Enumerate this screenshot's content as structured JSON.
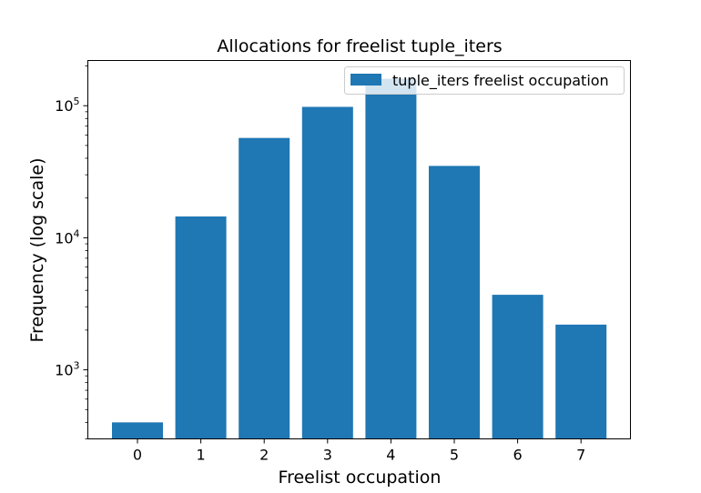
{
  "chart_data": {
    "type": "bar",
    "title": "Allocations for freelist tuple_iters",
    "xlabel": "Freelist occupation",
    "ylabel": "Frequency (log scale)",
    "yscale": "log",
    "ylim": [
      300,
      220000
    ],
    "categories": [
      "0",
      "1",
      "2",
      "3",
      "4",
      "5",
      "6",
      "7"
    ],
    "series": [
      {
        "name": "tuple_iters freelist occupation",
        "values": [
          400,
          14500,
          57000,
          98000,
          160000,
          35000,
          3700,
          2200
        ]
      }
    ],
    "bar_color": "#1f77b4",
    "legend": "top-right",
    "y_major_ticks": [
      {
        "value": 1000,
        "mantissa": "10",
        "exponent": "3"
      },
      {
        "value": 10000,
        "mantissa": "10",
        "exponent": "4"
      },
      {
        "value": 100000,
        "mantissa": "10",
        "exponent": "5"
      }
    ],
    "grid": false
  }
}
